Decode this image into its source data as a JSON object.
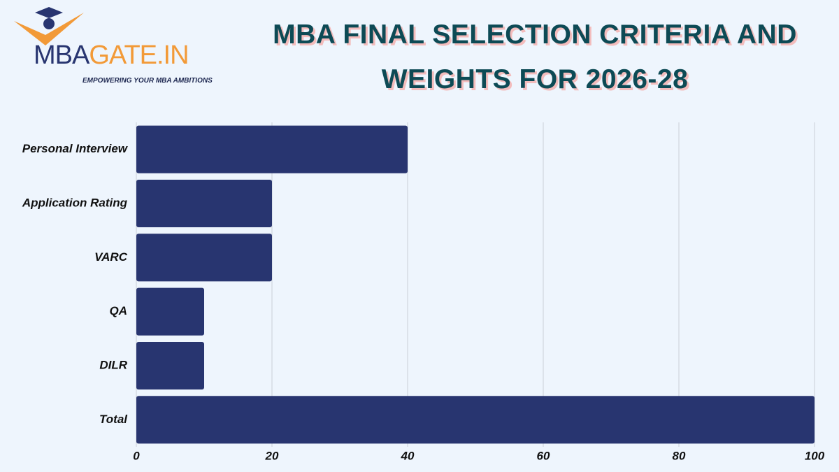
{
  "brand": {
    "parts": [
      "MBA",
      "GATE.IN"
    ],
    "tagline": "EMPOWERING YOUR MBA AMBITIONS"
  },
  "chart_data": {
    "type": "hbar",
    "title": "MBA FINAL SELECTION CRITERIA AND WEIGHTS FOR 2026-28",
    "categories": [
      "Personal Interview",
      "Application Rating",
      "VARC",
      "QA",
      "DILR",
      "Total"
    ],
    "values": [
      40,
      20,
      20,
      10,
      10,
      100
    ],
    "color": "#283570",
    "xlim": [
      0,
      100
    ],
    "xticks": [
      0,
      20,
      40,
      60,
      80,
      100
    ],
    "grid": true
  }
}
